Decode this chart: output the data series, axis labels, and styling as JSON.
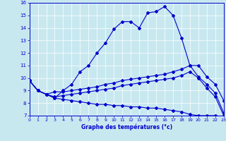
{
  "xlabel": "Graphe des températures (°c)",
  "bg_color": "#c8e8f0",
  "line_color": "#0000cc",
  "xlim": [
    0,
    23
  ],
  "ylim": [
    7,
    16
  ],
  "yticks": [
    7,
    8,
    9,
    10,
    11,
    12,
    13,
    14,
    15,
    16
  ],
  "xticks": [
    0,
    1,
    2,
    3,
    4,
    5,
    6,
    7,
    8,
    9,
    10,
    11,
    12,
    13,
    14,
    15,
    16,
    17,
    18,
    19,
    20,
    21,
    22,
    23
  ],
  "curve1_x": [
    0,
    1,
    2,
    3,
    4,
    5,
    6,
    7,
    8,
    9,
    10,
    11,
    12,
    13,
    14,
    15,
    16,
    17,
    18,
    19,
    20,
    21,
    22,
    23
  ],
  "curve1_y": [
    9.8,
    9.0,
    8.7,
    8.4,
    9.0,
    9.5,
    10.5,
    11.0,
    12.0,
    12.8,
    13.9,
    14.5,
    14.5,
    14.0,
    15.2,
    15.3,
    15.7,
    15.0,
    13.2,
    11.0,
    11.0,
    10.1,
    9.5,
    8.2
  ],
  "curve2_x": [
    0,
    1,
    2,
    3,
    4,
    5,
    6,
    7,
    8,
    9,
    10,
    11,
    12,
    13,
    14,
    15,
    16,
    17,
    18,
    19,
    20,
    21,
    22,
    23
  ],
  "curve2_y": [
    9.8,
    9.0,
    8.7,
    8.9,
    8.9,
    9.0,
    9.1,
    9.2,
    9.3,
    9.5,
    9.6,
    9.8,
    9.9,
    10.0,
    10.1,
    10.2,
    10.3,
    10.5,
    10.7,
    11.0,
    10.1,
    9.5,
    8.8,
    7.2
  ],
  "curve3_x": [
    0,
    1,
    2,
    3,
    4,
    5,
    6,
    7,
    8,
    9,
    10,
    11,
    12,
    13,
    14,
    15,
    16,
    17,
    18,
    19,
    20,
    21,
    22,
    23
  ],
  "curve3_y": [
    9.8,
    9.0,
    8.7,
    8.5,
    8.6,
    8.7,
    8.8,
    8.9,
    9.0,
    9.1,
    9.2,
    9.4,
    9.5,
    9.6,
    9.7,
    9.8,
    9.9,
    10.0,
    10.2,
    10.5,
    10.0,
    9.2,
    8.5,
    7.0
  ],
  "curve4_x": [
    0,
    1,
    2,
    3,
    4,
    5,
    6,
    7,
    8,
    9,
    10,
    11,
    12,
    13,
    14,
    15,
    16,
    17,
    18,
    19,
    20,
    21,
    22,
    23
  ],
  "curve4_y": [
    9.8,
    9.0,
    8.7,
    8.4,
    8.3,
    8.2,
    8.1,
    8.0,
    7.9,
    7.9,
    7.8,
    7.8,
    7.7,
    7.7,
    7.6,
    7.6,
    7.5,
    7.4,
    7.3,
    7.1,
    7.0,
    7.0,
    7.0,
    6.9
  ]
}
